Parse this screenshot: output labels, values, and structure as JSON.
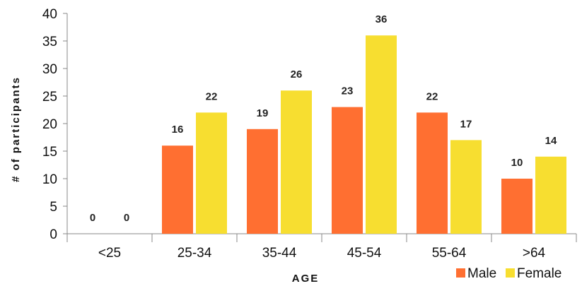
{
  "chart_data": {
    "type": "bar",
    "title": "",
    "xlabel": "AGE",
    "ylabel": "# of participants",
    "categories": [
      "<25",
      "25-34",
      "35-44",
      "45-54",
      "55-64",
      ">64"
    ],
    "series": [
      {
        "name": "Male",
        "values": [
          0,
          16,
          19,
          23,
          22,
          10
        ],
        "color": "#FF6F31"
      },
      {
        "name": "Female",
        "values": [
          0,
          22,
          26,
          36,
          17,
          14
        ],
        "color": "#F7DE30"
      }
    ],
    "ylim": [
      0,
      40
    ],
    "yticks": [
      0,
      5,
      10,
      15,
      20,
      25,
      30,
      35,
      40
    ],
    "grid": false,
    "legend": "bottom-right"
  }
}
